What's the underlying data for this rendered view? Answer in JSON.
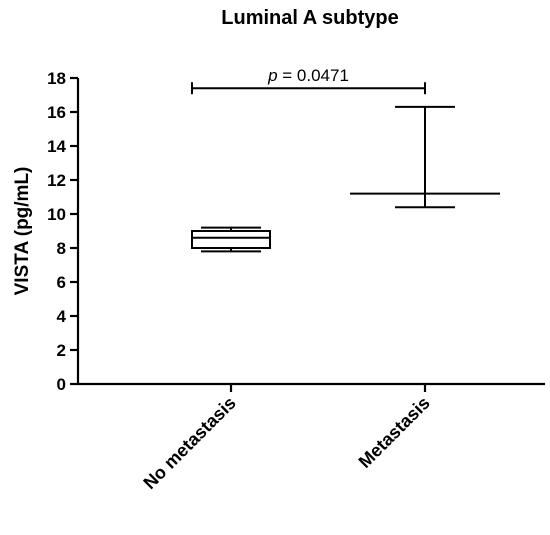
{
  "chart_data": {
    "type": "box",
    "title": "Luminal A subtype",
    "xlabel": "",
    "ylabel": "VISTA (pg/mL)",
    "ylim": [
      0,
      18
    ],
    "yticks": [
      0,
      2,
      4,
      6,
      8,
      10,
      12,
      14,
      16,
      18
    ],
    "categories": [
      "No metastasis",
      "Metastasis"
    ],
    "boxes": [
      {
        "min": 7.8,
        "q1": 8.0,
        "median": 8.6,
        "q3": 9.0,
        "max": 9.2
      },
      {
        "min": 10.4,
        "q1": 11.2,
        "median": 11.2,
        "q3": 11.2,
        "max": 16.3
      }
    ],
    "annotation": {
      "prefix": "p",
      "text": " = 0.0471",
      "between": [
        0,
        1
      ],
      "y": 17.4
    },
    "grid": false,
    "legend": "none"
  }
}
